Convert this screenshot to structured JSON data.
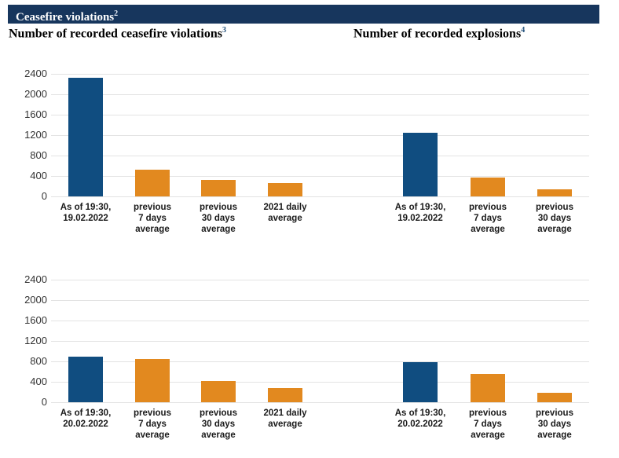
{
  "header": {
    "title": "Ceasefire violations",
    "footnote_ref": "2"
  },
  "subtitles": {
    "left": {
      "text": "Number of recorded ceasefire violations",
      "footnote_ref": "3"
    },
    "right": {
      "text": "Number of recorded explosions",
      "footnote_ref": "4"
    }
  },
  "colors": {
    "header_bg": "#17365D",
    "bar_blue": "#104D80",
    "bar_orange": "#E2891F",
    "gridline": "#E3E3E3",
    "tick_text": "#333333",
    "category_text": "#1A1A1A",
    "footnote_ref_text": "#1F4E79"
  },
  "axis": {
    "yticks": [
      0,
      400,
      800,
      1200,
      1600,
      2000,
      2400
    ],
    "ymax": 2400
  },
  "chart_data": [
    {
      "type": "bar",
      "title": "Number of recorded ceasefire violations — as of 19:30, 19.02.2022",
      "categories": [
        "As of 19:30,\n19.02.2022",
        "previous\n7 days\naverage",
        "previous\n30 days\naverage",
        "2021 daily\naverage"
      ],
      "values": [
        2320,
        530,
        330,
        260
      ],
      "bar_colors": [
        "blue",
        "orange",
        "orange",
        "orange"
      ],
      "ylim": [
        0,
        2400
      ],
      "grid": true,
      "legend": "none",
      "row": 0,
      "column": 0
    },
    {
      "type": "bar",
      "title": "Number of recorded explosions — as of 19:30, 19.02.2022",
      "categories": [
        "As of 19:30,\n19.02.2022",
        "previous\n7 days\naverage",
        "previous\n30 days\naverage"
      ],
      "values": [
        1240,
        370,
        140
      ],
      "bar_colors": [
        "blue",
        "orange",
        "orange"
      ],
      "ylim": [
        0,
        2400
      ],
      "grid": true,
      "legend": "none",
      "row": 0,
      "column": 1
    },
    {
      "type": "bar",
      "title": "Number of recorded ceasefire violations — as of 19:30, 20.02.2022",
      "categories": [
        "As of 19:30,\n20.02.2022",
        "previous\n7 days\naverage",
        "previous\n30 days\naverage",
        "2021 daily\naverage"
      ],
      "values": [
        900,
        850,
        410,
        270
      ],
      "bar_colors": [
        "blue",
        "orange",
        "orange",
        "orange"
      ],
      "ylim": [
        0,
        2400
      ],
      "grid": true,
      "legend": "none",
      "row": 1,
      "column": 0
    },
    {
      "type": "bar",
      "title": "Number of recorded explosions — as of 19:30, 20.02.2022",
      "categories": [
        "As of 19:30,\n20.02.2022",
        "previous\n7 days\naverage",
        "previous\n30 days\naverage"
      ],
      "values": [
        790,
        560,
        180
      ],
      "bar_colors": [
        "blue",
        "orange",
        "orange"
      ],
      "ylim": [
        0,
        2400
      ],
      "grid": true,
      "legend": "none",
      "row": 1,
      "column": 1
    }
  ]
}
